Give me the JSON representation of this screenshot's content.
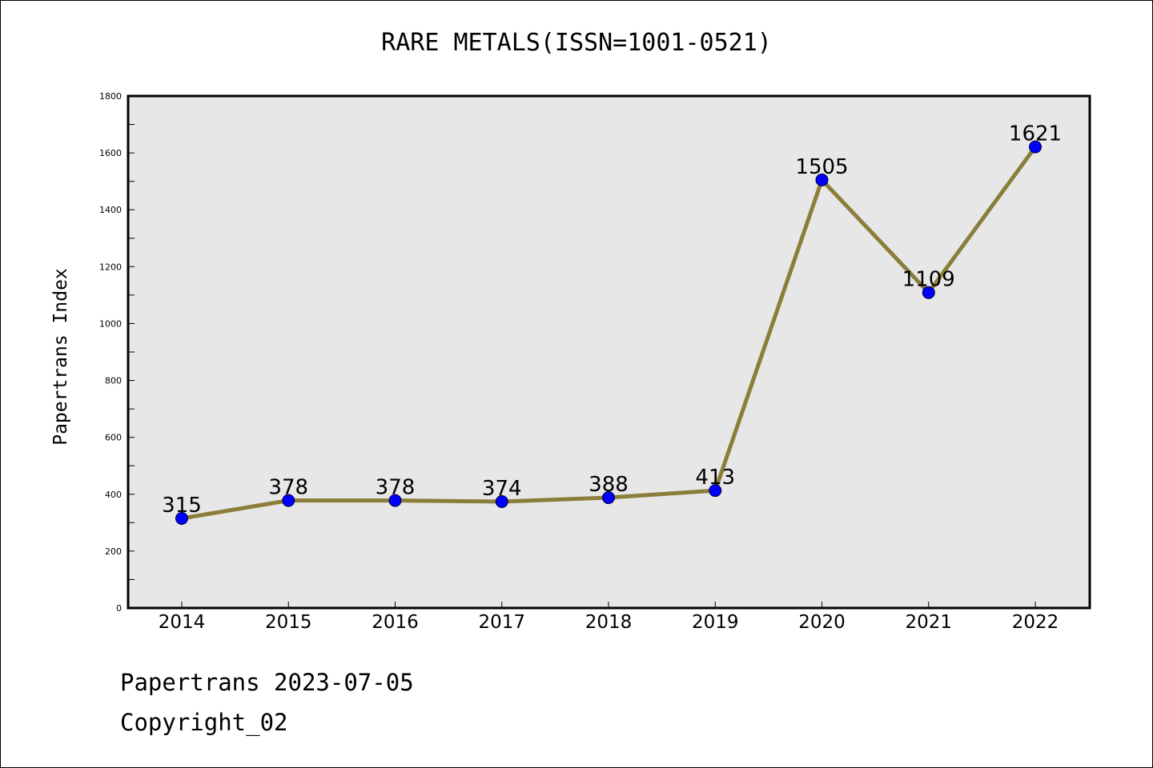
{
  "header": {
    "title": "RARE METALS(ISSN=1001-0521)"
  },
  "footer": {
    "line1": "Papertrans 2023-07-05",
    "line2": "Copyright_02"
  },
  "colors": {
    "plot_background": "#e7e7e7",
    "line": "#8b7d3a",
    "marker": "#0000ff"
  },
  "chart_data": {
    "type": "line",
    "title": "RARE METALS(ISSN=1001-0521)",
    "xlabel": "",
    "ylabel": "Papertrans Index",
    "categories": [
      "2014",
      "2015",
      "2016",
      "2017",
      "2018",
      "2019",
      "2020",
      "2021",
      "2022"
    ],
    "series": [
      {
        "values": [
          315,
          378,
          378,
          374,
          388,
          413,
          1505,
          1109,
          1621
        ]
      }
    ],
    "ylim": [
      0,
      1800
    ],
    "yticks": [
      0,
      200,
      400,
      600,
      800,
      1000,
      1200,
      1400,
      1600,
      1800
    ],
    "grid": false,
    "legend": "none"
  }
}
